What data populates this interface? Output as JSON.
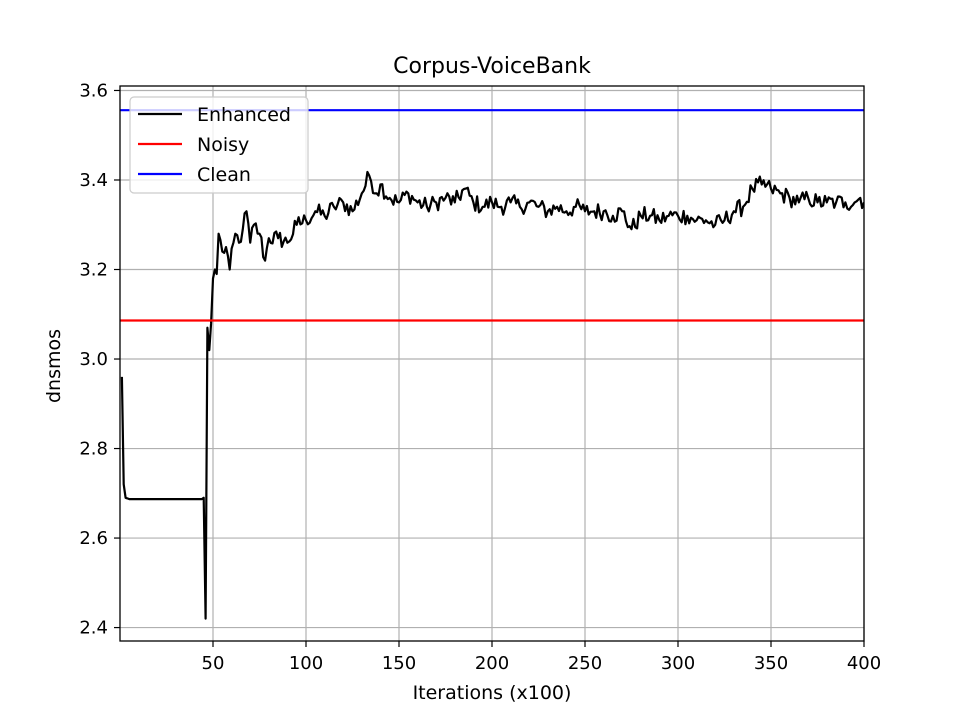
{
  "chart_data": {
    "type": "line",
    "title": "Corpus-VoiceBank",
    "xlabel": "Iterations (x100)",
    "ylabel": "dnsmos",
    "xlim": [
      0,
      400
    ],
    "ylim": [
      2.37,
      3.61
    ],
    "xticks": [
      50,
      100,
      150,
      200,
      250,
      300,
      350,
      400
    ],
    "yticks": [
      2.4,
      2.6,
      2.8,
      3.0,
      3.2,
      3.4,
      3.6
    ],
    "ytick_labels": [
      "2.4",
      "2.6",
      "2.8",
      "3.0",
      "3.2",
      "3.4",
      "3.6"
    ],
    "grid": true,
    "legend_position": "top-left",
    "series": [
      {
        "name": "Enhanced",
        "color": "#000000",
        "type": "line",
        "keypoints": [
          [
            1,
            2.96
          ],
          [
            2,
            2.72
          ],
          [
            3,
            2.69
          ],
          [
            5,
            2.687
          ],
          [
            10,
            2.687
          ],
          [
            20,
            2.687
          ],
          [
            30,
            2.687
          ],
          [
            40,
            2.687
          ],
          [
            44,
            2.687
          ],
          [
            45,
            2.69
          ],
          [
            46,
            2.42
          ],
          [
            47,
            3.07
          ],
          [
            48,
            3.02
          ],
          [
            49,
            3.08
          ],
          [
            50,
            3.18
          ],
          [
            51,
            3.2
          ],
          [
            52,
            3.19
          ],
          [
            53,
            3.28
          ],
          [
            55,
            3.24
          ],
          [
            57,
            3.25
          ],
          [
            59,
            3.2
          ],
          [
            62,
            3.28
          ],
          [
            64,
            3.26
          ],
          [
            66,
            3.29
          ],
          [
            68,
            3.33
          ],
          [
            70,
            3.26
          ],
          [
            72,
            3.3
          ],
          [
            75,
            3.28
          ],
          [
            78,
            3.22
          ],
          [
            80,
            3.27
          ],
          [
            85,
            3.27
          ],
          [
            90,
            3.26
          ],
          [
            95,
            3.3
          ],
          [
            100,
            3.31
          ],
          [
            105,
            3.33
          ],
          [
            110,
            3.32
          ],
          [
            115,
            3.34
          ],
          [
            120,
            3.35
          ],
          [
            125,
            3.33
          ],
          [
            130,
            3.37
          ],
          [
            134,
            3.41
          ],
          [
            138,
            3.37
          ],
          [
            140,
            3.39
          ],
          [
            145,
            3.36
          ],
          [
            150,
            3.35
          ],
          [
            155,
            3.37
          ],
          [
            160,
            3.35
          ],
          [
            165,
            3.34
          ],
          [
            170,
            3.35
          ],
          [
            175,
            3.36
          ],
          [
            180,
            3.35
          ],
          [
            185,
            3.38
          ],
          [
            190,
            3.35
          ],
          [
            195,
            3.34
          ],
          [
            200,
            3.35
          ],
          [
            205,
            3.34
          ],
          [
            210,
            3.35
          ],
          [
            215,
            3.34
          ],
          [
            220,
            3.35
          ],
          [
            225,
            3.34
          ],
          [
            230,
            3.33
          ],
          [
            235,
            3.34
          ],
          [
            240,
            3.33
          ],
          [
            245,
            3.34
          ],
          [
            250,
            3.33
          ],
          [
            255,
            3.33
          ],
          [
            260,
            3.33
          ],
          [
            265,
            3.32
          ],
          [
            270,
            3.33
          ],
          [
            275,
            3.29
          ],
          [
            280,
            3.32
          ],
          [
            285,
            3.32
          ],
          [
            290,
            3.31
          ],
          [
            295,
            3.32
          ],
          [
            300,
            3.32
          ],
          [
            305,
            3.32
          ],
          [
            310,
            3.31
          ],
          [
            315,
            3.31
          ],
          [
            320,
            3.3
          ],
          [
            325,
            3.31
          ],
          [
            330,
            3.33
          ],
          [
            335,
            3.34
          ],
          [
            340,
            3.38
          ],
          [
            345,
            3.39
          ],
          [
            350,
            3.38
          ],
          [
            355,
            3.37
          ],
          [
            360,
            3.36
          ],
          [
            365,
            3.35
          ],
          [
            370,
            3.36
          ],
          [
            375,
            3.35
          ],
          [
            380,
            3.35
          ],
          [
            385,
            3.35
          ],
          [
            390,
            3.35
          ],
          [
            395,
            3.35
          ],
          [
            398,
            3.36
          ],
          [
            400,
            3.35
          ]
        ]
      },
      {
        "name": "Noisy",
        "color": "#ff0000",
        "type": "hline",
        "value": 3.086
      },
      {
        "name": "Clean",
        "color": "#0000ff",
        "type": "hline",
        "value": 3.556
      }
    ]
  }
}
